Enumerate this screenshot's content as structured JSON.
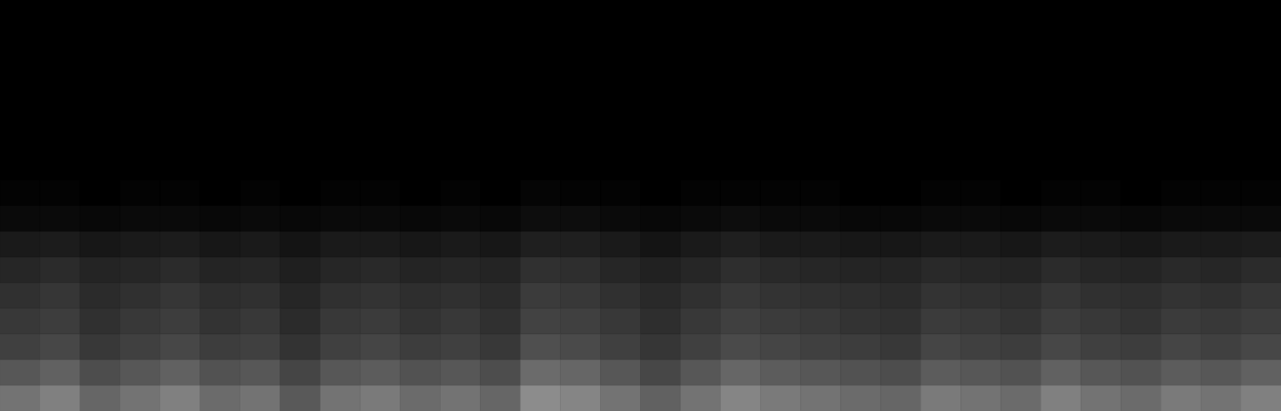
{
  "chart_data": {
    "type": "heatmap",
    "xlim": [
      0,
      32
    ],
    "ylim": [
      0,
      16
    ],
    "zlim": [
      0,
      100
    ],
    "colors": [
      "#000000",
      "#ffffff"
    ],
    "tick_labels": false,
    "grid": false,
    "cells": [
      [
        45,
        50,
        40,
        45,
        50,
        42,
        45,
        35,
        45,
        48,
        42,
        45,
        40,
        55,
        52,
        45,
        38,
        45,
        52,
        48,
        45,
        42,
        40,
        48,
        45,
        42,
        50,
        45,
        42,
        48,
        45,
        50
      ],
      [
        34,
        38,
        30,
        34,
        38,
        32,
        34,
        27,
        34,
        36,
        32,
        34,
        30,
        42,
        40,
        34,
        28,
        34,
        40,
        36,
        34,
        32,
        30,
        36,
        34,
        32,
        38,
        34,
        32,
        36,
        34,
        38
      ],
      [
        25,
        28,
        22,
        25,
        28,
        24,
        25,
        20,
        25,
        27,
        24,
        25,
        22,
        31,
        29,
        25,
        21,
        25,
        29,
        27,
        25,
        24,
        22,
        27,
        25,
        24,
        28,
        25,
        24,
        27,
        25,
        28
      ],
      [
        22,
        24,
        19,
        22,
        24,
        20,
        22,
        17,
        22,
        23,
        20,
        22,
        19,
        26,
        25,
        22,
        18,
        22,
        25,
        23,
        22,
        20,
        19,
        23,
        22,
        20,
        24,
        22,
        20,
        23,
        22,
        24
      ],
      [
        19,
        21,
        17,
        19,
        21,
        18,
        19,
        15,
        19,
        20,
        18,
        19,
        17,
        23,
        22,
        19,
        16,
        19,
        22,
        20,
        19,
        18,
        17,
        20,
        19,
        18,
        21,
        19,
        18,
        20,
        19,
        21
      ],
      [
        15,
        17,
        14,
        15,
        17,
        14,
        15,
        12,
        15,
        16,
        14,
        15,
        14,
        19,
        18,
        15,
        13,
        15,
        18,
        16,
        15,
        14,
        14,
        16,
        15,
        14,
        17,
        15,
        14,
        16,
        15,
        17
      ],
      [
        10,
        11,
        9,
        10,
        11,
        9,
        10,
        8,
        10,
        10,
        9,
        10,
        9,
        12,
        12,
        10,
        8,
        10,
        12,
        10,
        10,
        9,
        9,
        10,
        10,
        9,
        11,
        10,
        9,
        10,
        10,
        11
      ],
      [
        4,
        4,
        3,
        4,
        4,
        3,
        4,
        3,
        4,
        4,
        3,
        4,
        3,
        5,
        5,
        4,
        3,
        4,
        5,
        4,
        4,
        3,
        3,
        4,
        4,
        3,
        4,
        4,
        3,
        4,
        4,
        4
      ],
      [
        1,
        1,
        0,
        1,
        1,
        0,
        1,
        0,
        1,
        1,
        0,
        1,
        0,
        2,
        1,
        1,
        0,
        1,
        1,
        1,
        1,
        0,
        0,
        1,
        1,
        0,
        1,
        1,
        0,
        1,
        1,
        1
      ],
      [
        0,
        0,
        0,
        0,
        0,
        0,
        0,
        0,
        0,
        0,
        0,
        0,
        0,
        0,
        0,
        0,
        0,
        0,
        0,
        0,
        0,
        0,
        0,
        0,
        0,
        0,
        0,
        0,
        0,
        0,
        0,
        0
      ],
      [
        0,
        0,
        0,
        0,
        0,
        0,
        0,
        0,
        0,
        0,
        0,
        0,
        0,
        0,
        0,
        0,
        0,
        0,
        0,
        0,
        0,
        0,
        0,
        0,
        0,
        0,
        0,
        0,
        0,
        0,
        0,
        0
      ],
      [
        0,
        0,
        0,
        0,
        0,
        0,
        0,
        0,
        0,
        0,
        0,
        0,
        0,
        0,
        0,
        0,
        0,
        0,
        0,
        0,
        0,
        0,
        0,
        0,
        0,
        0,
        0,
        0,
        0,
        0,
        0,
        0
      ],
      [
        0,
        0,
        0,
        0,
        0,
        0,
        0,
        0,
        0,
        0,
        0,
        0,
        0,
        0,
        0,
        0,
        0,
        0,
        0,
        0,
        0,
        0,
        0,
        0,
        0,
        0,
        0,
        0,
        0,
        0,
        0,
        0
      ],
      [
        0,
        0,
        0,
        0,
        0,
        0,
        0,
        0,
        0,
        0,
        0,
        0,
        0,
        0,
        0,
        0,
        0,
        0,
        0,
        0,
        0,
        0,
        0,
        0,
        0,
        0,
        0,
        0,
        0,
        0,
        0,
        0
      ],
      [
        0,
        0,
        0,
        0,
        0,
        0,
        0,
        0,
        0,
        0,
        0,
        0,
        0,
        0,
        0,
        0,
        0,
        0,
        0,
        0,
        0,
        0,
        0,
        0,
        0,
        0,
        0,
        0,
        0,
        0,
        0,
        0
      ],
      [
        0,
        0,
        0,
        0,
        0,
        0,
        0,
        0,
        0,
        0,
        0,
        0,
        0,
        0,
        0,
        0,
        0,
        0,
        0,
        0,
        0,
        0,
        0,
        0,
        0,
        0,
        0,
        0,
        0,
        0,
        0,
        0
      ]
    ]
  }
}
